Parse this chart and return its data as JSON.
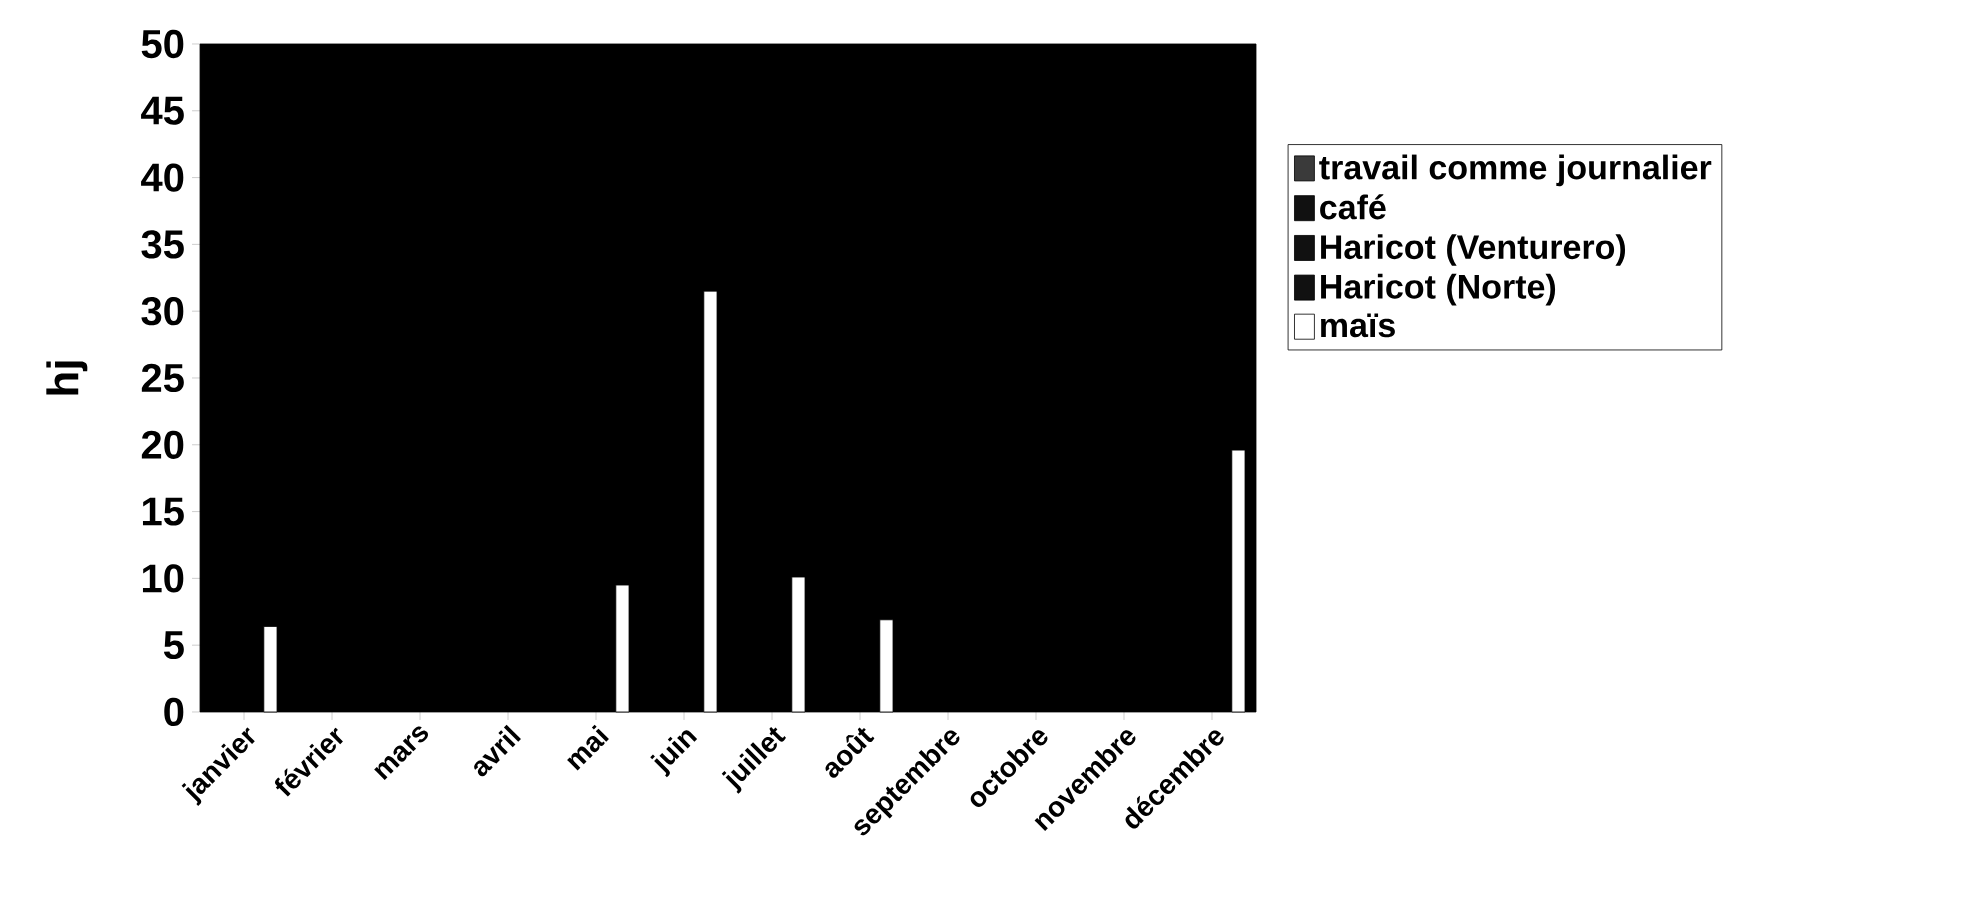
{
  "chart_data": {
    "type": "bar",
    "ylabel": "hj",
    "categories": [
      "janvier",
      "février",
      "mars",
      "avril",
      "mai",
      "juin",
      "juillet",
      "août",
      "septembre",
      "octobre",
      "novembre",
      "décembre"
    ],
    "series": [
      {
        "name": "travail comme journalier",
        "color": "#3a3a3a",
        "values": [
          null,
          null,
          null,
          null,
          null,
          null,
          null,
          null,
          null,
          null,
          null,
          null
        ]
      },
      {
        "name": "café",
        "color": "#111111",
        "values": [
          null,
          null,
          null,
          null,
          null,
          null,
          null,
          null,
          null,
          null,
          null,
          null
        ]
      },
      {
        "name": "Haricot (Venturero)",
        "color": "#111111",
        "values": [
          null,
          null,
          null,
          null,
          null,
          null,
          null,
          null,
          null,
          null,
          null,
          null
        ]
      },
      {
        "name": "Haricot (Norte)",
        "color": "#111111",
        "values": [
          null,
          null,
          null,
          null,
          null,
          null,
          null,
          null,
          null,
          null,
          null,
          null
        ]
      },
      {
        "name": "maïs",
        "color": "#ffffff",
        "values": [
          6.4,
          null,
          null,
          null,
          9.5,
          31.5,
          10.1,
          6.9,
          null,
          null,
          null,
          19.6
        ]
      }
    ],
    "ylim": [
      0,
      50
    ],
    "yticks": [
      0,
      5,
      10,
      15,
      20,
      25,
      30,
      35,
      40,
      45,
      50
    ],
    "legend": "right",
    "grid": false
  }
}
